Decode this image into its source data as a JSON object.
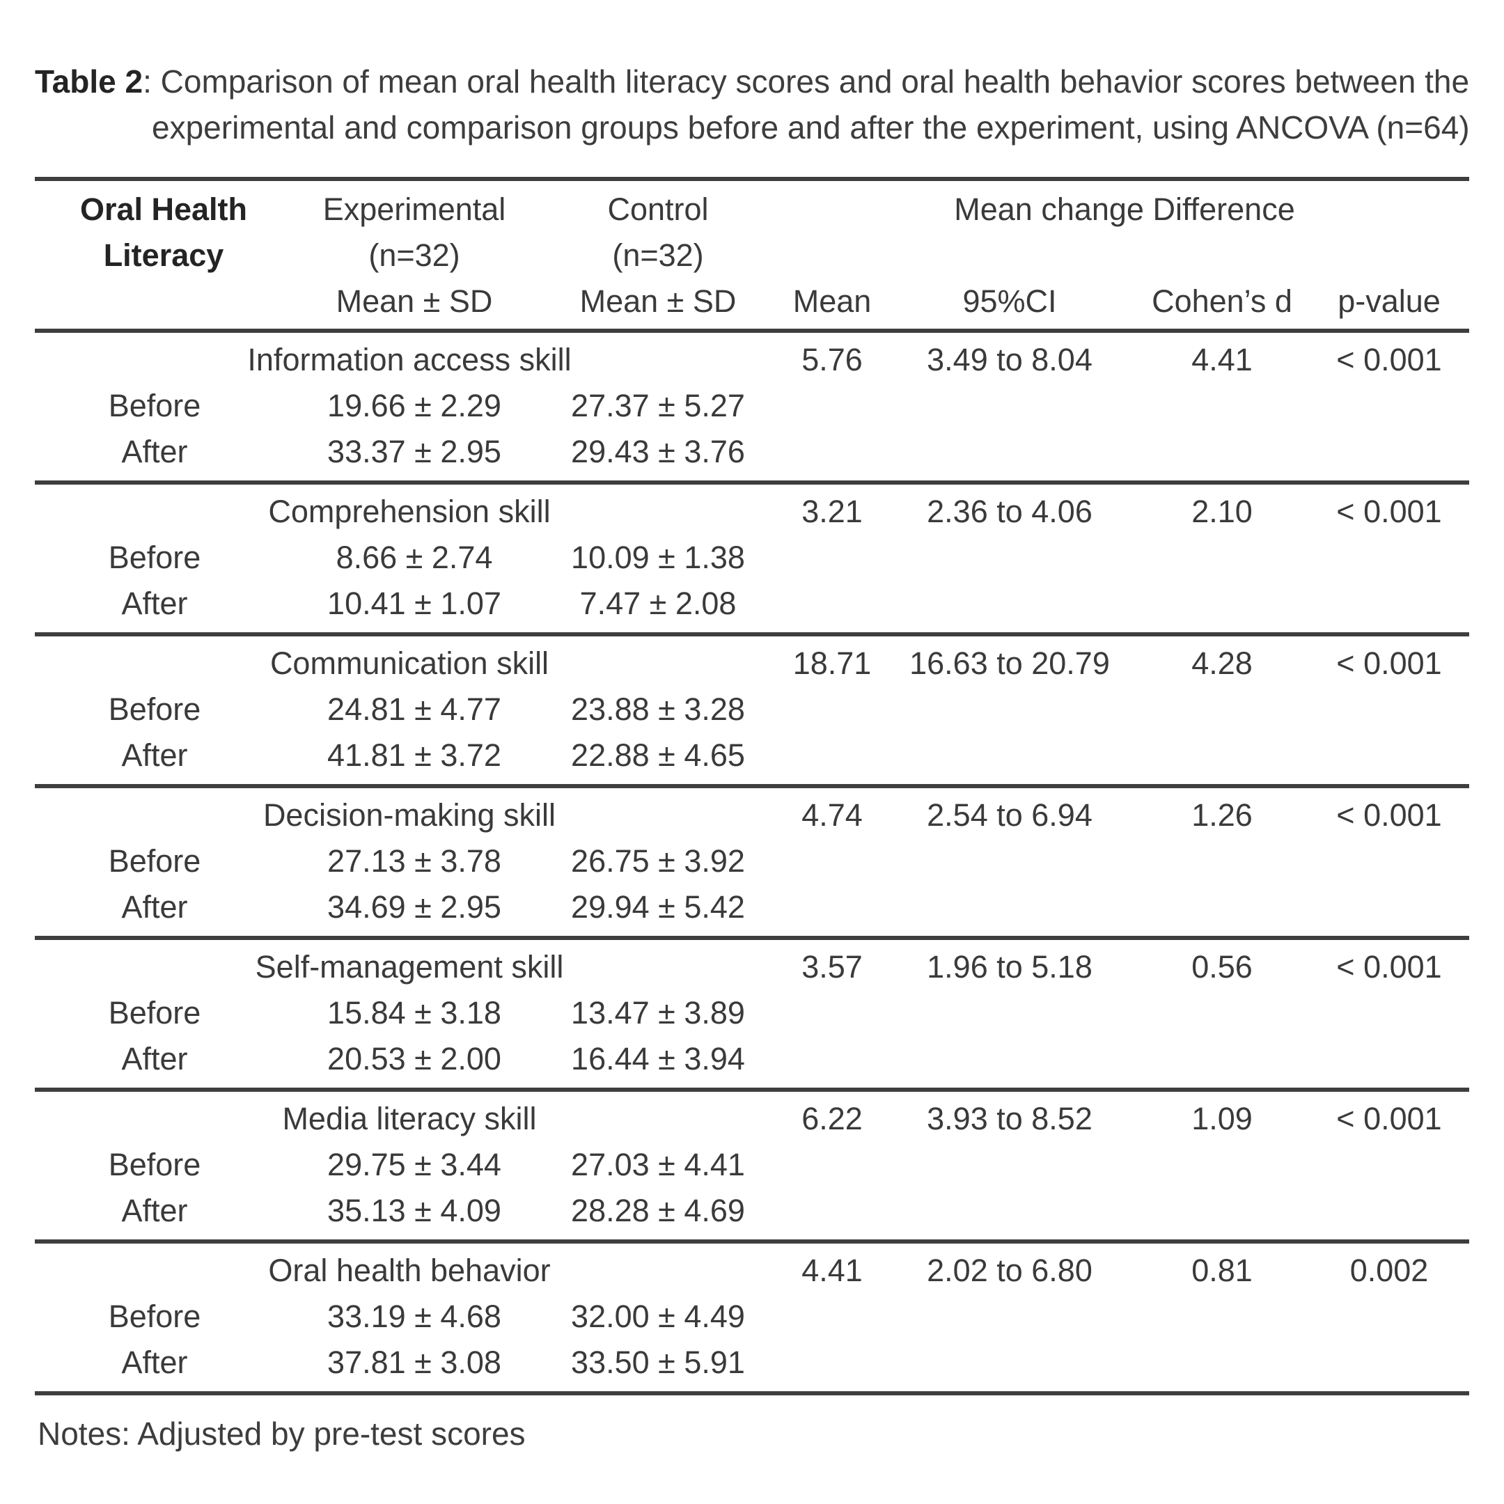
{
  "title": {
    "label": "Table 2",
    "rest": ": Comparison of mean oral health literacy scores and oral health behavior scores between the",
    "line2": "experimental and comparison groups before and after the experiment, using ANCOVA (n=64)"
  },
  "header": {
    "row_group": {
      "line1": "Oral Health",
      "line2": "Literacy"
    },
    "experimental": {
      "name": "Experimental",
      "n": "(n=32)",
      "stat": "Mean ± SD"
    },
    "control": {
      "name": "Control",
      "n": "(n=32)",
      "stat": "Mean ± SD"
    },
    "mean_change": {
      "label": "Mean change Difference",
      "mean": "Mean",
      "ci": "95%CI",
      "cohens_d": "Cohen’s d",
      "p_value": "p-value"
    }
  },
  "blocks": [
    {
      "label": "Information access skill",
      "mean": "5.76",
      "ci": "3.49 to 8.04",
      "cohens_d": "4.41",
      "p_value": "< 0.001",
      "before": {
        "label": "Before",
        "experimental": "19.66 ± 2.29",
        "control": "27.37 ± 5.27"
      },
      "after": {
        "label": "After",
        "experimental": "33.37 ± 2.95",
        "control": "29.43 ± 3.76"
      }
    },
    {
      "label": "Comprehension skill",
      "mean": "3.21",
      "ci": "2.36 to 4.06",
      "cohens_d": "2.10",
      "p_value": "< 0.001",
      "before": {
        "label": "Before",
        "experimental": "8.66 ± 2.74",
        "control": "10.09 ± 1.38"
      },
      "after": {
        "label": "After",
        "experimental": "10.41 ± 1.07",
        "control": "7.47 ± 2.08"
      }
    },
    {
      "label": "Communication skill",
      "mean": "18.71",
      "ci": "16.63 to 20.79",
      "cohens_d": "4.28",
      "p_value": "< 0.001",
      "before": {
        "label": "Before",
        "experimental": "24.81 ± 4.77",
        "control": "23.88 ± 3.28"
      },
      "after": {
        "label": "After",
        "experimental": "41.81 ± 3.72",
        "control": "22.88 ± 4.65"
      }
    },
    {
      "label": "Decision-making skill",
      "mean": "4.74",
      "ci": "2.54 to 6.94",
      "cohens_d": "1.26",
      "p_value": "< 0.001",
      "before": {
        "label": "Before",
        "experimental": "27.13 ± 3.78",
        "control": "26.75 ± 3.92"
      },
      "after": {
        "label": "After",
        "experimental": "34.69 ± 2.95",
        "control": "29.94 ± 5.42"
      }
    },
    {
      "label": "Self-management skill",
      "mean": "3.57",
      "ci": "1.96 to 5.18",
      "cohens_d": "0.56",
      "p_value": "< 0.001",
      "before": {
        "label": "Before",
        "experimental": "15.84 ± 3.18",
        "control": "13.47 ± 3.89"
      },
      "after": {
        "label": "After",
        "experimental": "20.53 ± 2.00",
        "control": "16.44 ± 3.94"
      }
    },
    {
      "label": "Media literacy skill",
      "mean": "6.22",
      "ci": "3.93 to 8.52",
      "cohens_d": "1.09",
      "p_value": "< 0.001",
      "before": {
        "label": "Before",
        "experimental": "29.75 ± 3.44",
        "control": "27.03 ± 4.41"
      },
      "after": {
        "label": "After",
        "experimental": "35.13 ± 4.09",
        "control": "28.28 ± 4.69"
      }
    },
    {
      "label": "Oral health behavior",
      "mean": "4.41",
      "ci": "2.02 to 6.80",
      "cohens_d": "0.81",
      "p_value": "0.002",
      "before": {
        "label": "Before",
        "experimental": "33.19 ± 4.68",
        "control": "32.00 ± 4.49"
      },
      "after": {
        "label": "After",
        "experimental": "37.81 ± 3.08",
        "control": "33.50 ± 5.91"
      }
    }
  ],
  "notes": "Notes: Adjusted by pre-test scores"
}
